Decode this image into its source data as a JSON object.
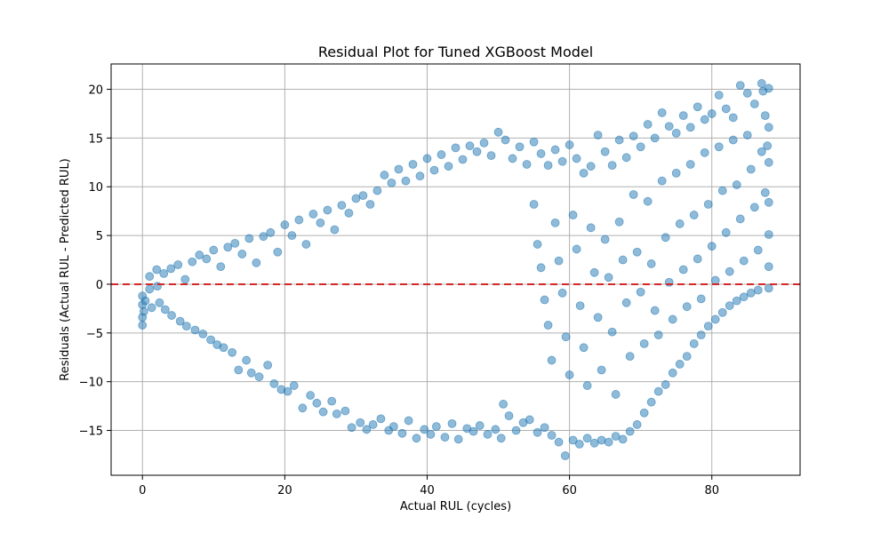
{
  "chart_data": {
    "type": "scatter",
    "title": "Residual Plot for Tuned XGBoost Model",
    "xlabel": "Actual RUL (cycles)",
    "ylabel": "Residuals (Actual RUL - Predicted RUL)",
    "xlim": [
      -4.4,
      92.4
    ],
    "ylim": [
      -19.6,
      22.6
    ],
    "xticks": [
      0,
      20,
      40,
      60,
      80
    ],
    "yticks": [
      -15,
      -10,
      -5,
      0,
      5,
      10,
      15,
      20
    ],
    "grid": true,
    "point_color": "#1f77b4",
    "point_alpha": 0.5,
    "reference_line": {
      "y": 0,
      "color": "#d62728",
      "style": "dashed"
    },
    "points": [
      [
        0,
        -2.1
      ],
      [
        0,
        -3.4
      ],
      [
        0,
        -4.2
      ],
      [
        0,
        -1.2
      ],
      [
        0.2,
        -2.8
      ],
      [
        0.4,
        -1.7
      ],
      [
        1,
        0.8
      ],
      [
        1,
        -0.5
      ],
      [
        1.3,
        -2.4
      ],
      [
        2,
        1.5
      ],
      [
        2.1,
        -0.2
      ],
      [
        2.4,
        -1.9
      ],
      [
        3,
        1.1
      ],
      [
        3.2,
        -2.6
      ],
      [
        4,
        1.6
      ],
      [
        4.1,
        -3.2
      ],
      [
        5,
        2.0
      ],
      [
        5.3,
        -3.8
      ],
      [
        6,
        0.5
      ],
      [
        6.2,
        -4.3
      ],
      [
        7,
        2.3
      ],
      [
        7.4,
        -4.7
      ],
      [
        8,
        3.0
      ],
      [
        8.5,
        -5.1
      ],
      [
        9,
        2.6
      ],
      [
        9.6,
        -5.7
      ],
      [
        10,
        3.5
      ],
      [
        10.5,
        -6.2
      ],
      [
        11,
        1.8
      ],
      [
        11.4,
        -6.5
      ],
      [
        12,
        3.8
      ],
      [
        12.6,
        -7.0
      ],
      [
        13,
        4.2
      ],
      [
        13.5,
        -8.8
      ],
      [
        14,
        3.1
      ],
      [
        14.6,
        -7.8
      ],
      [
        15,
        4.7
      ],
      [
        15.3,
        -9.1
      ],
      [
        16,
        2.2
      ],
      [
        16.4,
        -9.5
      ],
      [
        17,
        4.9
      ],
      [
        17.6,
        -8.3
      ],
      [
        18,
        5.3
      ],
      [
        18.5,
        -10.2
      ],
      [
        19,
        3.3
      ],
      [
        19.5,
        -10.8
      ],
      [
        20,
        6.1
      ],
      [
        20.4,
        -11.0
      ],
      [
        21,
        5.0
      ],
      [
        21.3,
        -10.4
      ],
      [
        22,
        6.6
      ],
      [
        22.5,
        -12.7
      ],
      [
        23,
        4.1
      ],
      [
        23.6,
        -11.4
      ],
      [
        24,
        7.2
      ],
      [
        24.5,
        -12.2
      ],
      [
        25,
        6.3
      ],
      [
        25.4,
        -13.1
      ],
      [
        26,
        7.6
      ],
      [
        26.6,
        -12.0
      ],
      [
        27,
        5.6
      ],
      [
        27.3,
        -13.3
      ],
      [
        28,
        8.1
      ],
      [
        28.5,
        -13.0
      ],
      [
        29,
        7.3
      ],
      [
        29.4,
        -14.7
      ],
      [
        30,
        8.8
      ],
      [
        30.6,
        -14.2
      ],
      [
        31,
        9.1
      ],
      [
        31.5,
        -14.9
      ],
      [
        32,
        8.2
      ],
      [
        32.4,
        -14.4
      ],
      [
        33,
        9.6
      ],
      [
        33.5,
        -13.8
      ],
      [
        34,
        11.2
      ],
      [
        34.6,
        -15.0
      ],
      [
        35,
        10.4
      ],
      [
        35.3,
        -14.6
      ],
      [
        36,
        11.8
      ],
      [
        36.5,
        -15.3
      ],
      [
        37,
        10.6
      ],
      [
        37.4,
        -14.0
      ],
      [
        38,
        12.3
      ],
      [
        38.5,
        -15.8
      ],
      [
        39,
        11.1
      ],
      [
        39.6,
        -14.9
      ],
      [
        40,
        12.9
      ],
      [
        40.5,
        -15.4
      ],
      [
        41,
        11.7
      ],
      [
        41.3,
        -14.6
      ],
      [
        42,
        13.3
      ],
      [
        42.5,
        -15.7
      ],
      [
        43,
        12.1
      ],
      [
        43.5,
        -14.3
      ],
      [
        44,
        14.0
      ],
      [
        44.4,
        -15.9
      ],
      [
        45,
        12.8
      ],
      [
        45.6,
        -14.8
      ],
      [
        46,
        14.2
      ],
      [
        46.5,
        -15.1
      ],
      [
        47,
        13.6
      ],
      [
        47.4,
        -14.5
      ],
      [
        48,
        14.5
      ],
      [
        48.5,
        -15.4
      ],
      [
        49,
        13.2
      ],
      [
        49.6,
        -14.9
      ],
      [
        50,
        15.6
      ],
      [
        50.4,
        -15.8
      ],
      [
        50.7,
        -12.3
      ],
      [
        51,
        14.8
      ],
      [
        51.5,
        -13.5
      ],
      [
        52,
        12.9
      ],
      [
        52.5,
        -15.0
      ],
      [
        53,
        14.1
      ],
      [
        53.5,
        -14.2
      ],
      [
        54,
        12.3
      ],
      [
        54.4,
        -13.9
      ],
      [
        55,
        14.6
      ],
      [
        55.5,
        -15.2
      ],
      [
        56,
        13.4
      ],
      [
        56.5,
        -14.7
      ],
      [
        57,
        12.2
      ],
      [
        57.5,
        -15.5
      ],
      [
        58,
        13.8
      ],
      [
        58.5,
        -16.2
      ],
      [
        59,
        12.6
      ],
      [
        59.4,
        -17.6
      ],
      [
        60,
        14.3
      ],
      [
        60.5,
        -16.0
      ],
      [
        61,
        12.9
      ],
      [
        61.4,
        -16.4
      ],
      [
        62,
        11.4
      ],
      [
        62.5,
        -15.8
      ],
      [
        63,
        12.1
      ],
      [
        63.5,
        -16.3
      ],
      [
        64,
        15.3
      ],
      [
        64.5,
        -16.0
      ],
      [
        65,
        13.6
      ],
      [
        65.5,
        -16.2
      ],
      [
        66,
        12.2
      ],
      [
        66.5,
        -15.6
      ],
      [
        67,
        14.8
      ],
      [
        67.5,
        -15.9
      ],
      [
        68,
        13.0
      ],
      [
        68.5,
        -15.1
      ],
      [
        69,
        15.2
      ],
      [
        69.5,
        -14.4
      ],
      [
        70,
        14.1
      ],
      [
        70.5,
        -13.2
      ],
      [
        71,
        16.4
      ],
      [
        71.5,
        -12.1
      ],
      [
        72,
        15.0
      ],
      [
        72.5,
        -11.0
      ],
      [
        73,
        17.6
      ],
      [
        73.5,
        -10.3
      ],
      [
        74,
        16.2
      ],
      [
        74.5,
        -9.1
      ],
      [
        75,
        15.5
      ],
      [
        75.5,
        -8.2
      ],
      [
        76,
        17.3
      ],
      [
        76.5,
        -7.4
      ],
      [
        77,
        16.1
      ],
      [
        77.5,
        -6.1
      ],
      [
        78,
        18.2
      ],
      [
        78.5,
        -5.2
      ],
      [
        79,
        16.9
      ],
      [
        79.5,
        -4.3
      ],
      [
        80,
        17.5
      ],
      [
        80.5,
        -3.6
      ],
      [
        81,
        19.4
      ],
      [
        81.5,
        -2.9
      ],
      [
        82,
        18.0
      ],
      [
        82.5,
        -2.2
      ],
      [
        83,
        17.1
      ],
      [
        83.5,
        -1.7
      ],
      [
        84,
        20.4
      ],
      [
        84.5,
        -1.3
      ],
      [
        85,
        19.6
      ],
      [
        85.5,
        -0.9
      ],
      [
        86,
        18.5
      ],
      [
        86.5,
        -0.6
      ],
      [
        87,
        20.6
      ],
      [
        87.2,
        19.8
      ],
      [
        87.5,
        17.3
      ],
      [
        87.8,
        14.2
      ],
      [
        88,
        20.1
      ],
      [
        88,
        16.1
      ],
      [
        88,
        12.5
      ],
      [
        88,
        8.4
      ],
      [
        88,
        5.1
      ],
      [
        88,
        1.8
      ],
      [
        88,
        -0.4
      ],
      [
        55,
        8.2
      ],
      [
        55.5,
        4.1
      ],
      [
        56,
        1.7
      ],
      [
        56.5,
        -1.6
      ],
      [
        57,
        -4.2
      ],
      [
        57.5,
        -7.8
      ],
      [
        58,
        6.3
      ],
      [
        58.5,
        2.4
      ],
      [
        59,
        -0.9
      ],
      [
        59.5,
        -5.4
      ],
      [
        60,
        -9.3
      ],
      [
        60.5,
        7.1
      ],
      [
        61,
        3.6
      ],
      [
        61.5,
        -2.2
      ],
      [
        62,
        -6.5
      ],
      [
        62.5,
        -10.4
      ],
      [
        63,
        5.8
      ],
      [
        63.5,
        1.2
      ],
      [
        64,
        -3.4
      ],
      [
        64.5,
        -8.8
      ],
      [
        65,
        4.6
      ],
      [
        65.5,
        0.7
      ],
      [
        66,
        -4.9
      ],
      [
        66.5,
        -11.3
      ],
      [
        67,
        6.4
      ],
      [
        67.5,
        2.5
      ],
      [
        68,
        -1.9
      ],
      [
        68.5,
        -7.4
      ],
      [
        69,
        9.2
      ],
      [
        69.5,
        3.3
      ],
      [
        70,
        -0.8
      ],
      [
        70.5,
        -6.1
      ],
      [
        71,
        8.5
      ],
      [
        71.5,
        2.1
      ],
      [
        72,
        -2.7
      ],
      [
        72.5,
        -5.2
      ],
      [
        73,
        10.6
      ],
      [
        73.5,
        4.8
      ],
      [
        74,
        0.2
      ],
      [
        74.5,
        -3.6
      ],
      [
        75,
        11.4
      ],
      [
        75.5,
        6.2
      ],
      [
        76,
        1.5
      ],
      [
        76.5,
        -2.3
      ],
      [
        77,
        12.3
      ],
      [
        77.5,
        7.1
      ],
      [
        78,
        2.6
      ],
      [
        78.5,
        -1.5
      ],
      [
        79,
        13.5
      ],
      [
        79.5,
        8.2
      ],
      [
        80,
        3.9
      ],
      [
        80.5,
        0.4
      ],
      [
        81,
        14.1
      ],
      [
        81.5,
        9.6
      ],
      [
        82,
        5.3
      ],
      [
        82.5,
        1.3
      ],
      [
        83,
        14.8
      ],
      [
        83.5,
        10.2
      ],
      [
        84,
        6.7
      ],
      [
        84.5,
        2.4
      ],
      [
        85,
        15.3
      ],
      [
        85.5,
        11.8
      ],
      [
        86,
        7.9
      ],
      [
        86.5,
        3.5
      ],
      [
        87,
        13.6
      ],
      [
        87.5,
        9.4
      ]
    ]
  }
}
